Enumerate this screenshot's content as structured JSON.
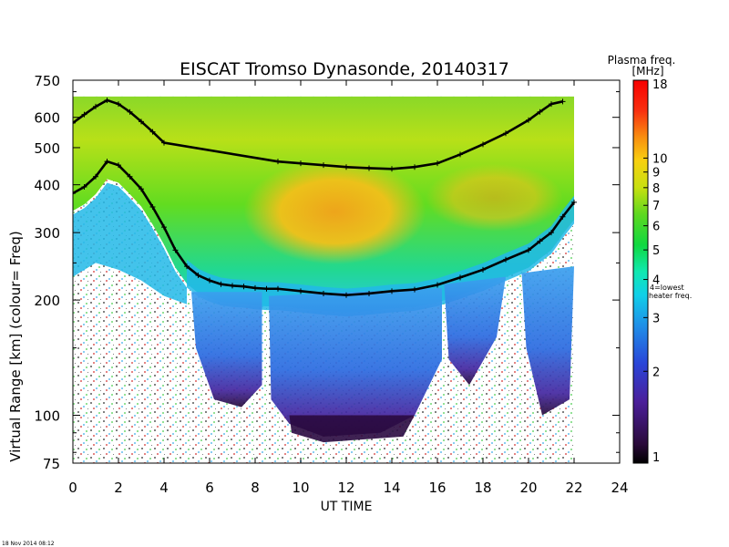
{
  "chart_data": {
    "type": "heatmap",
    "title": "EISCAT Tromso Dynasonde,  20140317",
    "xlabel": "UT TIME",
    "ylabel": "Virtual Range [km]    (colour= Freq)",
    "xlim": [
      0,
      24
    ],
    "ylim": [
      75,
      750
    ],
    "yscale": "log",
    "x_ticks": [
      "0",
      "2",
      "4",
      "6",
      "8",
      "10",
      "12",
      "14",
      "16",
      "18",
      "20",
      "22",
      "24"
    ],
    "y_ticks": [
      "75",
      "100",
      "200",
      "300",
      "400",
      "500",
      "600",
      "750"
    ],
    "colorbar": {
      "title_line1": "Plasma freq.",
      "title_line2": "[MHz]",
      "scale": "log",
      "range": [
        1,
        18
      ],
      "ticks": [
        "1",
        "2",
        "3",
        "4",
        "5",
        "6",
        "7",
        "8",
        "9",
        "10",
        "18"
      ],
      "annotation_line1": "4=lowest",
      "annotation_line2": "heater freq."
    },
    "traces": [
      {
        "x": [
          0,
          0.5,
          1,
          1.5,
          2,
          2.5,
          3,
          3.5,
          4,
          4.5,
          5,
          5.5,
          6,
          6.5,
          7,
          7.5,
          8,
          8.5,
          9,
          10,
          11,
          12,
          13,
          14,
          15,
          16,
          17,
          18,
          19,
          20,
          20.5,
          21,
          21.5,
          22
        ],
        "y": [
          380,
          395,
          420,
          460,
          450,
          420,
          390,
          350,
          310,
          270,
          245,
          232,
          225,
          220,
          218,
          217,
          215,
          214,
          214,
          211,
          208,
          206,
          208,
          211,
          213,
          219,
          229,
          240,
          255,
          270,
          285,
          300,
          330,
          360
        ]
      },
      {
        "x": [
          0,
          0.5,
          1,
          1.5,
          2,
          2.5,
          3,
          3.5,
          4,
          9,
          10,
          11,
          12,
          13,
          14,
          15,
          16,
          17,
          18,
          19,
          20,
          20.5,
          21,
          21.5
        ],
        "y": [
          580,
          610,
          640,
          665,
          650,
          620,
          585,
          550,
          515,
          460,
          455,
          450,
          445,
          442,
          440,
          445,
          455,
          480,
          510,
          545,
          590,
          620,
          650,
          660
        ]
      }
    ],
    "data_regions": [
      {
        "x_from": 0,
        "x_to": 4.5,
        "lower_boundary_km": 270,
        "upper_km": 680,
        "colour_freq_mhz": "3-5, 5-7 near top"
      },
      {
        "x_from": 4.5,
        "x_to": 8.5,
        "lower_boundary_km": 215,
        "upper_km": 680,
        "colour_freq_mhz": "4-7; lower layer 1.5-3 at 85-210 km"
      },
      {
        "x_from": 8.5,
        "x_to": 15,
        "lower_boundary_km": 205,
        "upper_km": 680,
        "colour_freq_mhz": "7-10; lower layer 1.5-3 at 85-210 km"
      },
      {
        "x_from": 15,
        "x_to": 22,
        "lower_boundary_km": 220,
        "upper_km": 680,
        "colour_freq_mhz": "5-8; lower layer 1.5-3 at 100-230 km"
      }
    ]
  },
  "footer": {
    "timestamp": "18 Nov 2014 08:12"
  }
}
